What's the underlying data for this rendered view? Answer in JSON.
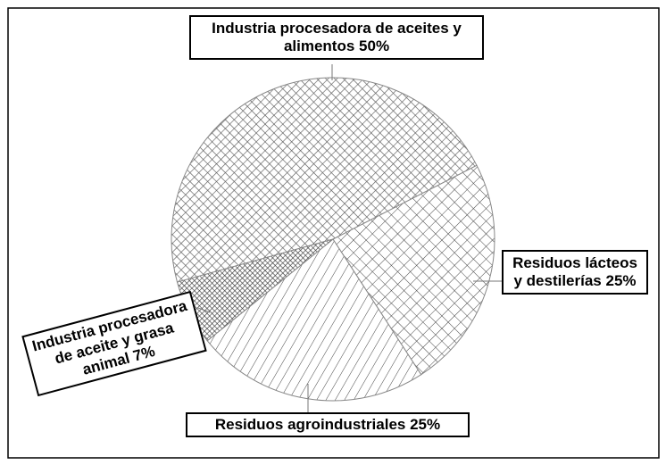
{
  "chart_data": {
    "type": "pie",
    "categories": [
      "Industria procesadora de aceites y alimentos",
      "Residuos lácteos y destilerías",
      "Residuos agroindustriales",
      "Industria procesadora de aceite y grasa animal"
    ],
    "values": [
      50,
      25,
      25,
      7
    ],
    "value_labels": [
      "50%",
      "25%",
      "25%",
      "7%"
    ],
    "colors": [
      "#ffffff",
      "#ffffff",
      "#ffffff",
      "#ffffff"
    ]
  }
}
